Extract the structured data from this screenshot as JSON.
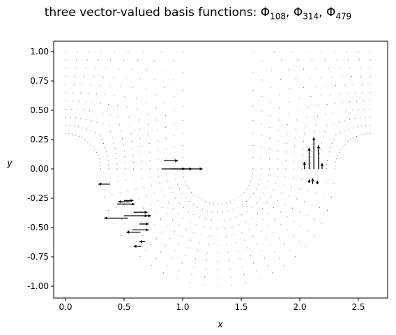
{
  "chart_data": {
    "type": "quiver",
    "title": {
      "prefix": "three vector-valued basis functions: ",
      "symbol": "Φ",
      "indices": [
        "108",
        "314",
        "479"
      ],
      "separator": ", "
    },
    "xlabel": "x",
    "ylabel": "y",
    "xlim": [
      -0.13,
      2.73
    ],
    "ylim": [
      -1.1,
      1.1
    ],
    "xticks": [
      "0.0",
      "0.5",
      "1.0",
      "1.5",
      "2.0",
      "2.5"
    ],
    "yticks": [
      "-1.00",
      "-0.75",
      "-0.50",
      "-0.25",
      "0.00",
      "0.25",
      "0.50",
      "0.75",
      "1.00"
    ],
    "grid": false,
    "mesh": {
      "description": "dotted curvilinear grid of a U-shaped channel",
      "left_arm_corner": [
        0.0,
        0.0
      ],
      "right_arm_corner": [
        2.6,
        0.0
      ],
      "inner_radius": 0.3,
      "outer_radius_reaches": 1.0,
      "bottom_center": [
        1.3,
        0.0
      ],
      "bottom_inner_radius": 0.3,
      "bottom_outer_radius": 1.0
    },
    "series": [
      {
        "vectors": [
          {
            "x": 0.84,
            "y": 0.07,
            "u": 0.12,
            "v": 0.0
          },
          {
            "x": 0.82,
            "y": 0.0,
            "u": 0.35,
            "v": 0.0
          },
          {
            "x": 0.9,
            "y": 0.0,
            "u": 0.12,
            "v": 0.0
          },
          {
            "x": 0.98,
            "y": 0.0,
            "u": 0.1,
            "v": 0.0
          }
        ]
      },
      {
        "vectors": [
          {
            "x": 0.38,
            "y": -0.13,
            "u": -0.1,
            "v": 0.0
          },
          {
            "x": 0.5,
            "y": -0.27,
            "u": 0.08,
            "v": 0.0
          },
          {
            "x": 0.44,
            "y": -0.3,
            "u": 0.15,
            "v": 0.0
          },
          {
            "x": 0.55,
            "y": -0.28,
            "u": -0.1,
            "v": 0.0
          },
          {
            "x": 0.58,
            "y": -0.37,
            "u": 0.12,
            "v": 0.0
          },
          {
            "x": 0.5,
            "y": -0.4,
            "u": 0.2,
            "v": 0.0
          },
          {
            "x": 0.53,
            "y": -0.42,
            "u": -0.2,
            "v": 0.0
          },
          {
            "x": 0.62,
            "y": -0.4,
            "u": 0.11,
            "v": 0.0
          },
          {
            "x": 0.63,
            "y": -0.47,
            "u": 0.08,
            "v": 0.0
          },
          {
            "x": 0.57,
            "y": -0.52,
            "u": 0.14,
            "v": 0.0
          },
          {
            "x": 0.64,
            "y": -0.54,
            "u": -0.12,
            "v": 0.0
          },
          {
            "x": 0.68,
            "y": -0.62,
            "u": -0.05,
            "v": 0.0
          },
          {
            "x": 0.65,
            "y": -0.66,
            "u": -0.07,
            "v": 0.0
          }
        ]
      },
      {
        "vectors": [
          {
            "x": 2.04,
            "y": 0.0,
            "u": 0.0,
            "v": 0.06
          },
          {
            "x": 2.08,
            "y": 0.0,
            "u": 0.0,
            "v": 0.18
          },
          {
            "x": 2.12,
            "y": 0.0,
            "u": 0.0,
            "v": 0.27
          },
          {
            "x": 2.16,
            "y": 0.0,
            "u": 0.0,
            "v": 0.2
          },
          {
            "x": 2.19,
            "y": 0.0,
            "u": 0.0,
            "v": 0.05
          },
          {
            "x": 2.08,
            "y": -0.12,
            "u": 0.0,
            "v": 0.03
          },
          {
            "x": 2.11,
            "y": -0.13,
            "u": 0.0,
            "v": 0.05
          },
          {
            "x": 2.15,
            "y": -0.13,
            "u": 0.0,
            "v": 0.03
          }
        ]
      }
    ]
  }
}
